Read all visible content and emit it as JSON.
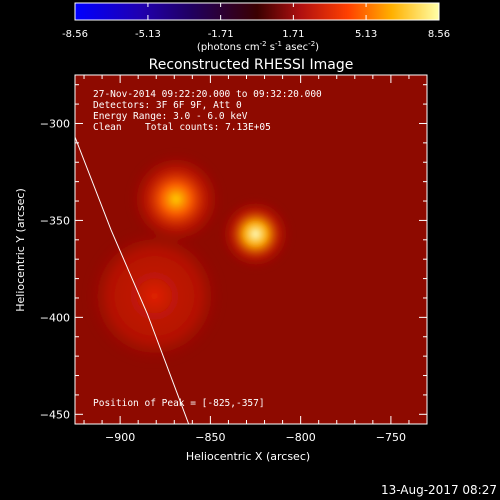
{
  "chart_data": {
    "type": "heatmap",
    "title": "Reconstructed RHESSI Image",
    "colorbar": {
      "ticks": [
        "-8.56",
        "-5.13",
        "-1.71",
        "1.71",
        "5.13",
        "8.56"
      ],
      "range": [
        -8.56,
        8.56
      ],
      "units_prefix": "(photons cm",
      "units_exp1": "-2",
      "units_mid1": " s",
      "units_exp2": "-1",
      "units_mid2": " asec",
      "units_exp3": "-2",
      "units_suffix": ")"
    },
    "xlabel": "Heliocentric X (arcsec)",
    "ylabel": "Heliocentric Y (arcsec)",
    "xlim": [
      -925,
      -730
    ],
    "ylim": [
      -455,
      -275
    ],
    "xticks": [
      {
        "value": -900,
        "label": "−900"
      },
      {
        "value": -850,
        "label": "−850"
      },
      {
        "value": -800,
        "label": "−800"
      },
      {
        "value": -750,
        "label": "−750"
      }
    ],
    "yticks": [
      {
        "value": -300,
        "label": "−300"
      },
      {
        "value": -350,
        "label": "−350"
      },
      {
        "value": -400,
        "label": "−400"
      },
      {
        "value": -450,
        "label": "−450"
      }
    ],
    "sources": [
      {
        "x": -869,
        "y": -339,
        "amp": 0.78,
        "sigma": 9
      },
      {
        "x": -825,
        "y": -357,
        "amp": 1.0,
        "sigma": 7
      },
      {
        "x": -881,
        "y": -389,
        "amp": 0.42,
        "sigma": 13
      }
    ],
    "limb": [
      {
        "x": -925,
        "y": -307
      },
      {
        "x": -905,
        "y": -355
      },
      {
        "x": -885,
        "y": -398
      },
      {
        "x": -862,
        "y": -455
      }
    ],
    "annotations": {
      "time_range": "27-Nov-2014 09:22:20.000 to 09:32:20.000",
      "detectors": "Detectors: 3F 6F 9F, Att 0",
      "energy": "Energy Range: 3.0 - 6.0 keV",
      "method": "Clean",
      "counts": "Total counts: 7.13E+05",
      "peak": "Position of Peak = [-825,-357]"
    }
  },
  "footer": {
    "date": "13-Aug-2017 08:27"
  }
}
